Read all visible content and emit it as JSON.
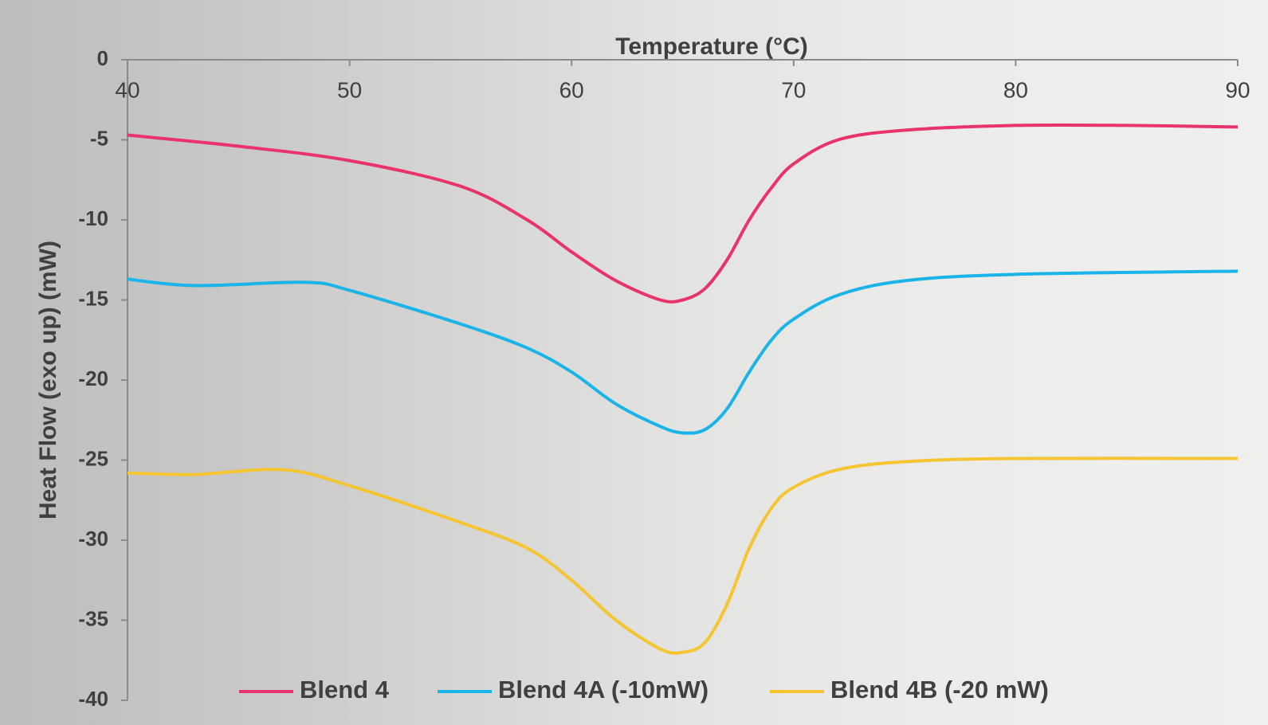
{
  "chart_data": {
    "type": "line",
    "x_label": "Temperature (°C)",
    "y_label": "Heat Flow (exo up) (mW)",
    "xlim": [
      40,
      90
    ],
    "xticks": [
      40,
      50,
      60,
      70,
      80,
      90
    ],
    "ylim": [
      -40,
      0
    ],
    "yticks": [
      0,
      -5,
      -10,
      -15,
      -20,
      -25,
      -30,
      -35,
      -40
    ],
    "series": [
      {
        "name": "Blend 4",
        "color": "#e8336b",
        "x": [
          40,
          45,
          50,
          55,
          58,
          60,
          62,
          64,
          65,
          66,
          67,
          68,
          69,
          70,
          72,
          75,
          80,
          85,
          90
        ],
        "values": [
          -4.7,
          -5.4,
          -6.3,
          -7.9,
          -10,
          -12,
          -13.8,
          -15,
          -15,
          -14.3,
          -12.5,
          -10,
          -8,
          -6.5,
          -5,
          -4.4,
          -4.1,
          -4.1,
          -4.2
        ]
      },
      {
        "name": "Blend 4A (-10mW)",
        "color": "#1ab4e8",
        "x": [
          40,
          43,
          48,
          50,
          55,
          58,
          60,
          62,
          64,
          65,
          66,
          67,
          68,
          69,
          70,
          72,
          75,
          80,
          90
        ],
        "values": [
          -13.7,
          -14.1,
          -13.9,
          -14.4,
          -16.5,
          -18,
          -19.5,
          -21.5,
          -22.9,
          -23.3,
          -23.1,
          -21.8,
          -19.5,
          -17.5,
          -16.2,
          -14.7,
          -13.8,
          -13.4,
          -13.2
        ]
      },
      {
        "name": "Blend 4B (-20 mW)",
        "color": "#f5c531",
        "x": [
          40,
          43,
          47,
          50,
          55,
          58,
          60,
          62,
          64,
          65,
          66,
          67,
          68,
          69,
          70,
          72,
          75,
          80,
          90
        ],
        "values": [
          -25.8,
          -25.9,
          -25.6,
          -26.6,
          -28.9,
          -30.5,
          -32.5,
          -35,
          -36.8,
          -37,
          -36.4,
          -34,
          -30.5,
          -28,
          -26.7,
          -25.6,
          -25.1,
          -24.9,
          -24.9
        ]
      }
    ]
  }
}
